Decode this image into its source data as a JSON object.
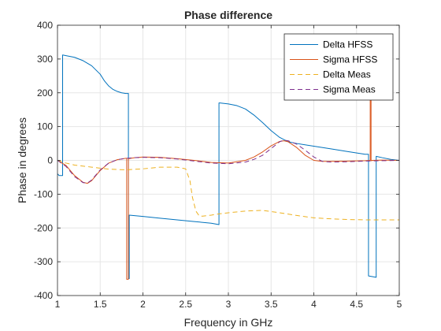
{
  "chart_data": {
    "type": "line",
    "title": "Phase difference",
    "xlabel": "Frequency in GHz",
    "ylabel": "Phase in degrees",
    "xlim": [
      1,
      5
    ],
    "ylim": [
      -400,
      400
    ],
    "xticks": [
      1,
      1.5,
      2,
      2.5,
      3,
      3.5,
      4,
      4.5,
      5
    ],
    "xtick_labels": [
      "1",
      "1.5",
      "2",
      "2.5",
      "3",
      "3.5",
      "4",
      "4.5",
      "5"
    ],
    "yticks": [
      -400,
      -300,
      -200,
      -100,
      0,
      100,
      200,
      300,
      400
    ],
    "ytick_labels": [
      "-400",
      "-300",
      "-200",
      "-100",
      "0",
      "100",
      "200",
      "300",
      "400"
    ],
    "grid": true,
    "legend_position": "top-right",
    "series": [
      {
        "name": "Delta HFSS",
        "color": "#0072BD",
        "dash": "solid",
        "x": [
          1.0,
          1.02,
          1.04,
          1.06,
          1.06,
          1.1,
          1.2,
          1.3,
          1.4,
          1.5,
          1.55,
          1.6,
          1.65,
          1.7,
          1.75,
          1.8,
          1.83,
          1.83,
          1.84,
          1.84,
          2.0,
          2.2,
          2.4,
          2.6,
          2.8,
          2.89,
          2.89,
          2.9,
          3.0,
          3.1,
          3.2,
          3.3,
          3.4,
          3.5,
          3.6,
          3.7,
          3.8,
          4.0,
          4.2,
          4.4,
          4.6,
          4.64,
          4.64,
          4.73,
          4.73,
          4.8,
          4.9,
          5.0
        ],
        "y": [
          -40,
          -45,
          -45,
          -45,
          312,
          310,
          305,
          295,
          280,
          255,
          235,
          220,
          210,
          204,
          200,
          198,
          198,
          -350,
          -350,
          -162,
          -166,
          -171,
          -176,
          -181,
          -186,
          -190,
          170,
          170,
          167,
          162,
          152,
          134,
          112,
          88,
          68,
          55,
          50,
          42,
          34,
          26,
          18,
          18,
          -342,
          -346,
          12,
          8,
          3,
          0
        ]
      },
      {
        "name": "Sigma HFSS",
        "color": "#D95319",
        "dash": "solid",
        "x": [
          1.0,
          1.1,
          1.2,
          1.3,
          1.35,
          1.4,
          1.5,
          1.6,
          1.7,
          1.8,
          1.81,
          1.81,
          1.83,
          1.83,
          1.9,
          2.0,
          2.2,
          2.4,
          2.6,
          2.8,
          3.0,
          3.2,
          3.3,
          3.4,
          3.5,
          3.6,
          3.65,
          3.7,
          3.8,
          3.9,
          4.0,
          4.1,
          4.2,
          4.4,
          4.6,
          4.66,
          4.66,
          4.67,
          4.67,
          4.68,
          4.68,
          4.8,
          5.0
        ],
        "y": [
          0,
          -15,
          -45,
          -65,
          -68,
          -60,
          -30,
          -8,
          2,
          6,
          6,
          -352,
          -352,
          5,
          8,
          10,
          9,
          5,
          0,
          -6,
          -8,
          0,
          10,
          25,
          43,
          56,
          58,
          55,
          38,
          15,
          0,
          -3,
          -3,
          -2,
          -1,
          0,
          270,
          270,
          -1,
          -1,
          0,
          1,
          0
        ]
      },
      {
        "name": "Delta Meas",
        "color": "#EDB120",
        "dash": "dashed",
        "x": [
          1.0,
          1.1,
          1.2,
          1.4,
          1.6,
          1.8,
          2.0,
          2.2,
          2.4,
          2.5,
          2.55,
          2.58,
          2.62,
          2.66,
          2.7,
          2.8,
          2.9,
          3.0,
          3.2,
          3.4,
          3.6,
          3.8,
          4.0,
          4.2,
          4.4,
          4.6,
          4.8,
          5.0
        ],
        "y": [
          0,
          -8,
          -14,
          -20,
          -26,
          -28,
          -25,
          -20,
          -20,
          -25,
          -60,
          -110,
          -150,
          -165,
          -165,
          -162,
          -158,
          -155,
          -150,
          -148,
          -155,
          -163,
          -170,
          -173,
          -175,
          -176,
          -176,
          -176
        ]
      },
      {
        "name": "Sigma Meas",
        "color": "#7E2F8E",
        "dash": "dashed",
        "x": [
          1.0,
          1.1,
          1.2,
          1.3,
          1.35,
          1.4,
          1.5,
          1.6,
          1.7,
          1.8,
          1.9,
          2.0,
          2.2,
          2.4,
          2.6,
          2.8,
          3.0,
          3.2,
          3.3,
          3.4,
          3.5,
          3.6,
          3.65,
          3.7,
          3.8,
          3.9,
          4.0,
          4.1,
          4.2,
          4.4,
          4.6,
          4.8,
          5.0
        ],
        "y": [
          0,
          -18,
          -48,
          -66,
          -67,
          -58,
          -28,
          -8,
          2,
          6,
          8,
          9,
          8,
          4,
          -2,
          -8,
          -10,
          -5,
          3,
          15,
          35,
          55,
          60,
          58,
          48,
          30,
          10,
          -3,
          -5,
          -4,
          -2,
          -1,
          0
        ]
      }
    ]
  }
}
